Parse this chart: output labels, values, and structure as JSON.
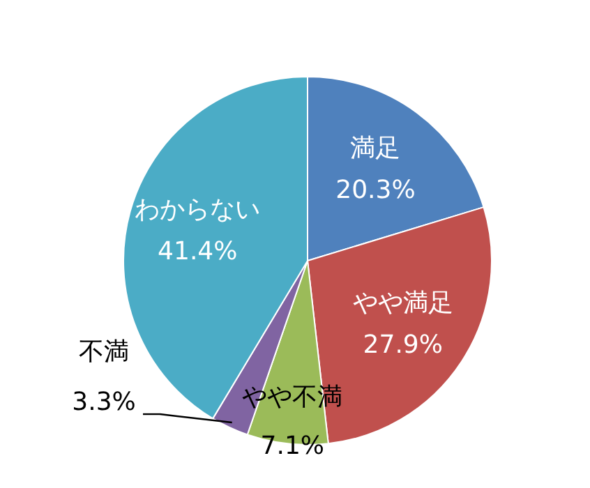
{
  "chart_data": {
    "type": "pie",
    "categories": [
      "満足",
      "やや満足",
      "やや不満",
      "不満",
      "わからない"
    ],
    "values": [
      20.3,
      27.9,
      7.1,
      3.3,
      41.4
    ],
    "colors": [
      "#4f81bd",
      "#c0504d",
      "#9bbb59",
      "#8064a2",
      "#4bacc6"
    ],
    "value_labels": [
      "20.3%",
      "27.9%",
      "7.1%",
      "3.3%",
      "41.4%"
    ],
    "legend": false
  }
}
